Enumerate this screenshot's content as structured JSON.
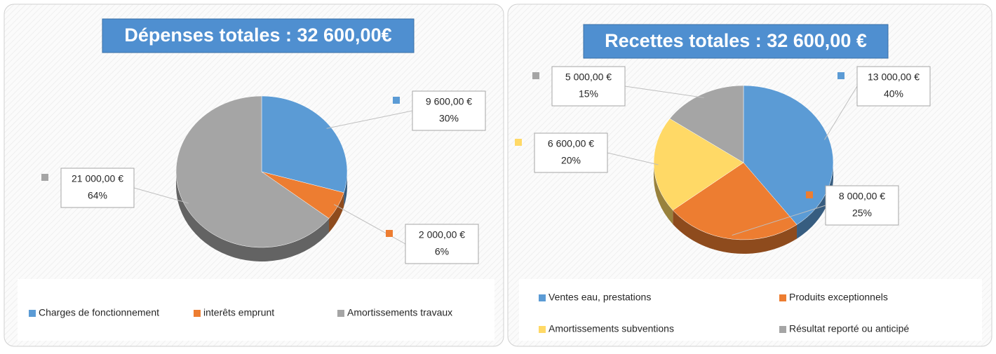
{
  "chart_data": [
    {
      "type": "pie",
      "title": "Dépenses totales : 32 600,00€",
      "categories": [
        "Charges de fonctionnement",
        "interêts emprunt",
        "Amortissements travaux"
      ],
      "values": [
        9600,
        2000,
        21000
      ],
      "value_labels": [
        "9 600,00 €",
        "2 000,00 €",
        "21 000,00 €"
      ],
      "percents": [
        30,
        6,
        64
      ],
      "percent_labels": [
        "30%",
        "6%",
        "64%"
      ],
      "colors": [
        "#5b9bd5",
        "#ed7d31",
        "#a5a5a5"
      ],
      "legend": "bottom"
    },
    {
      "type": "pie",
      "title": "Recettes totales : 32 600,00 €",
      "categories": [
        "Ventes eau, prestations",
        "Produits exceptionnels",
        "Amortissements subventions",
        "Résultat reporté ou anticipé"
      ],
      "values": [
        13000,
        8000,
        6600,
        5000
      ],
      "value_labels": [
        "13 000,00 €",
        "8 000,00 €",
        "6 600,00 €",
        "5 000,00 €"
      ],
      "percents": [
        40,
        25,
        20,
        15
      ],
      "percent_labels": [
        "40%",
        "25%",
        "20%",
        "15%"
      ],
      "colors": [
        "#5b9bd5",
        "#ed7d31",
        "#ffd966",
        "#a5a5a5"
      ],
      "legend": "bottom"
    }
  ]
}
